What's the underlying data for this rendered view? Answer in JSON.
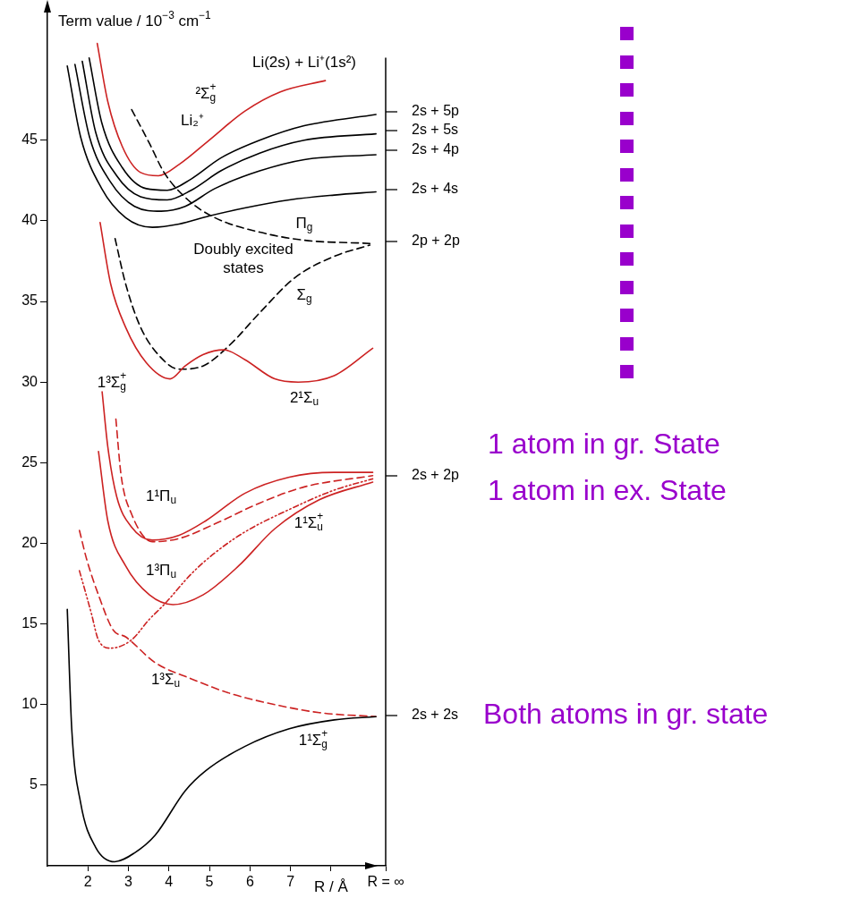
{
  "chart_data": {
    "type": "line",
    "ylabel": "Term value / 10$^{−3}$ cm$^{−1}$",
    "xlabel": "R / Å",
    "xlim": [
      1,
      9.35
    ],
    "xticks": [
      2,
      3,
      4,
      5,
      6,
      7,
      {
        "value": 8,
        "label": null
      },
      {
        "value": 9.35,
        "label": "R = ∞"
      }
    ],
    "ylim": [
      0,
      53
    ],
    "yticks": [
      5,
      10,
      15,
      20,
      25,
      30,
      35,
      40,
      45
    ],
    "ref_lines": [
      {
        "axis": "x",
        "value": 9.35
      }
    ],
    "series": [
      {
        "color": "#000000",
        "line_style": "solid",
        "x": [
          1.49,
          1.6,
          1.82,
          2.19,
          2.66,
          3.15,
          3.66,
          4.4,
          4.91,
          5.87,
          6.97,
          8.08,
          9.11
        ],
        "values": [
          15.9,
          8.5,
          3.9,
          1.15,
          0.25,
          0.8,
          1.9,
          4.65,
          5.9,
          7.4,
          8.5,
          9.05,
          9.25
        ]
      },
      {
        "color": "#cc2222",
        "line_style": "dashed",
        "x": [
          1.79,
          1.97,
          2.26,
          2.63,
          2.93,
          3.66,
          4.55,
          5.5,
          6.61,
          7.71,
          9.11
        ],
        "values": [
          20.8,
          19,
          16.8,
          14.6,
          14.2,
          12.6,
          11.6,
          10.7,
          10,
          9.5,
          9.25
        ]
      },
      {
        "color": "#cc2222",
        "line_style": "dotted",
        "x": [
          1.79,
          2.08,
          2.26,
          2.56,
          3.07,
          3.52,
          3.88,
          4.55,
          5.13,
          5.87,
          6.97,
          8.08,
          9.03
        ],
        "values": [
          18.3,
          15.7,
          14,
          13.5,
          14,
          15.3,
          16.2,
          18.1,
          19.4,
          20.7,
          22.1,
          23.3,
          24
        ]
      },
      {
        "color": "#cc2222",
        "line_style": "solid",
        "x": [
          2.26,
          2.49,
          2.93,
          3.52,
          4.1,
          4.84,
          5.72,
          6.61,
          7.71,
          9.03
        ],
        "values": [
          25.7,
          21.4,
          18.6,
          16.8,
          16.2,
          16.8,
          18.6,
          20.9,
          22.7,
          23.8
        ]
      },
      {
        "color": "#cc2222",
        "line_style": "solid",
        "x": [
          2.35,
          2.49,
          2.71,
          3.08,
          3.59,
          4.25,
          4.91,
          5.87,
          6.97,
          8.08,
          9.03
        ],
        "values": [
          29.4,
          26,
          22.9,
          21,
          20.2,
          20.5,
          21.4,
          23.1,
          24.1,
          24.4,
          24.4
        ]
      },
      {
        "color": "#cc2222",
        "line_style": "dashed",
        "x": [
          2.69,
          2.82,
          3.08,
          3.59,
          4.25,
          5.13,
          6.24,
          7.34,
          9.03
        ],
        "values": [
          27.7,
          24.2,
          21.8,
          20.1,
          20.3,
          21.2,
          22.5,
          23.5,
          24.2
        ]
      },
      {
        "color": "#cc2222",
        "line_style": "solid",
        "x": [
          2.3,
          2.56,
          2.93,
          3.44,
          4.03,
          4.4,
          4.84,
          5.36,
          5.87,
          6.61,
          7.19,
          8.08,
          9.03
        ],
        "values": [
          39.9,
          36.1,
          33.4,
          31.2,
          30.2,
          31,
          31.7,
          32,
          31.4,
          30.2,
          30,
          30.4,
          32.1
        ]
      },
      {
        "color": "#000000",
        "line_style": "dashed",
        "x": [
          2.67,
          2.93,
          3.3,
          3.81,
          4.25,
          4.84,
          5.5,
          6.24,
          7.12,
          8.08,
          8.96
        ],
        "values": [
          38.9,
          36.1,
          33.4,
          31.5,
          30.8,
          31,
          32.3,
          34.3,
          36.5,
          37.8,
          38.5
        ]
      },
      {
        "color": "#000000",
        "line_style": "dashed",
        "x": [
          3.08,
          3.52,
          3.88,
          4.47,
          5.13,
          6.24,
          7.34,
          8.96
        ],
        "values": [
          46.9,
          44.8,
          43,
          41.3,
          40.2,
          39.3,
          38.8,
          38.6
        ]
      },
      {
        "color": "#cc2222",
        "line_style": "solid",
        "x": [
          2.23,
          2.49,
          2.85,
          3.3,
          3.74,
          4.25,
          4.99,
          5.87,
          6.75,
          7.86
        ],
        "values": [
          51,
          47.4,
          44.6,
          43,
          42.8,
          43.5,
          45,
          46.8,
          48,
          48.7
        ]
      },
      {
        "color": "#000000",
        "line_style": "solid",
        "x": [
          1.49,
          1.82,
          2.34,
          2.93,
          3.59,
          4.25,
          4.99,
          5.87,
          6.97,
          8.08,
          9.11
        ],
        "values": [
          49.6,
          45.2,
          42,
          40.2,
          39.6,
          39.8,
          40.3,
          40.8,
          41.3,
          41.6,
          41.8
        ]
      },
      {
        "color": "#000000",
        "line_style": "solid",
        "x": [
          1.68,
          2.04,
          2.56,
          3.15,
          3.81,
          4.4,
          5.13,
          6.24,
          7.34,
          9.11
        ],
        "values": [
          49.7,
          45.2,
          42.4,
          40.9,
          40.6,
          40.9,
          42,
          43.1,
          43.8,
          44.1
        ]
      },
      {
        "color": "#000000",
        "line_style": "solid",
        "x": [
          1.86,
          2.19,
          2.71,
          3.3,
          3.96,
          4.55,
          5.28,
          6.24,
          7.34,
          9.11
        ],
        "values": [
          49.9,
          45.5,
          42.8,
          41.5,
          41.3,
          41.9,
          43.1,
          44.2,
          45,
          45.4
        ]
      },
      {
        "color": "#000000",
        "line_style": "solid",
        "x": [
          2.03,
          2.34,
          2.85,
          3.44,
          3.96,
          4.55,
          5.28,
          6.24,
          7.34,
          9.11
        ],
        "values": [
          50.1,
          46.1,
          43.3,
          42,
          41.9,
          42.6,
          43.9,
          45,
          45.9,
          46.6
        ]
      }
    ],
    "annotations": [
      "Li(2s) + Li⁺(1s²)",
      "²Σ$_{g}$$^{+}$",
      "Li₂⁺",
      "Π$_{g}$",
      "Doubly excited states",
      "Σ$_{g}$",
      "2¹Σ$_{u}$",
      "1³Σ$_{g}$$^{+}$",
      "1¹Π$_{u}$",
      "1¹Σ$_{u}$$^{+}$",
      "1³Π$_{u}$",
      "1³Σ$_{u}$",
      "1¹Σ$_{g}$$^{+}$",
      "2s + 5p",
      "2s + 5s",
      "2s + 4p",
      "2s + 4s",
      "2p + 2p",
      "2s + 2p",
      "2s + 2s",
      "1 atom in gr. State",
      "1 atom in ex. State",
      "Both atoms in gr. state"
    ]
  }
}
